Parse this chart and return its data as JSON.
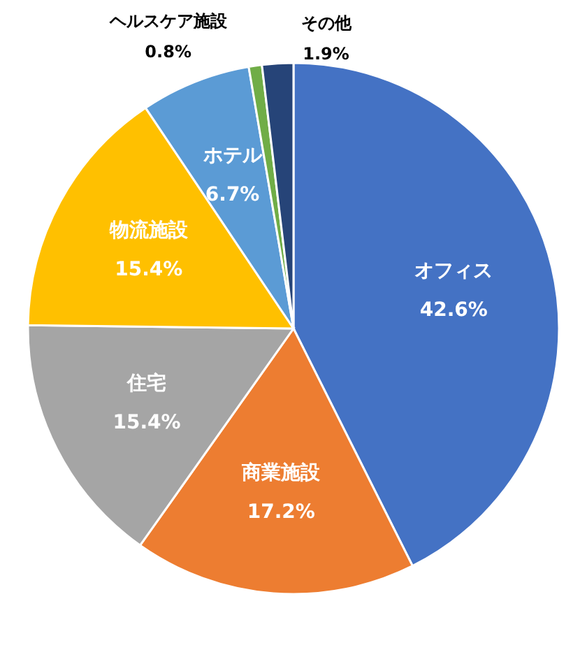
{
  "chart_data": {
    "type": "pie",
    "categories": [
      "オフィス",
      "商業施設",
      "住宅",
      "物流施設",
      "ホテル",
      "ヘルスケア施設",
      "その他"
    ],
    "values": [
      42.6,
      17.2,
      15.4,
      15.4,
      6.7,
      0.8,
      1.9
    ],
    "value_labels": [
      "42.6%",
      "17.2%",
      "15.4%",
      "15.4%",
      "6.7%",
      "0.8%",
      "1.9%"
    ],
    "colors": [
      "#4472c4",
      "#ed7d31",
      "#a5a5a5",
      "#ffc000",
      "#5b9bd5",
      "#70ad47",
      "#264478"
    ]
  }
}
